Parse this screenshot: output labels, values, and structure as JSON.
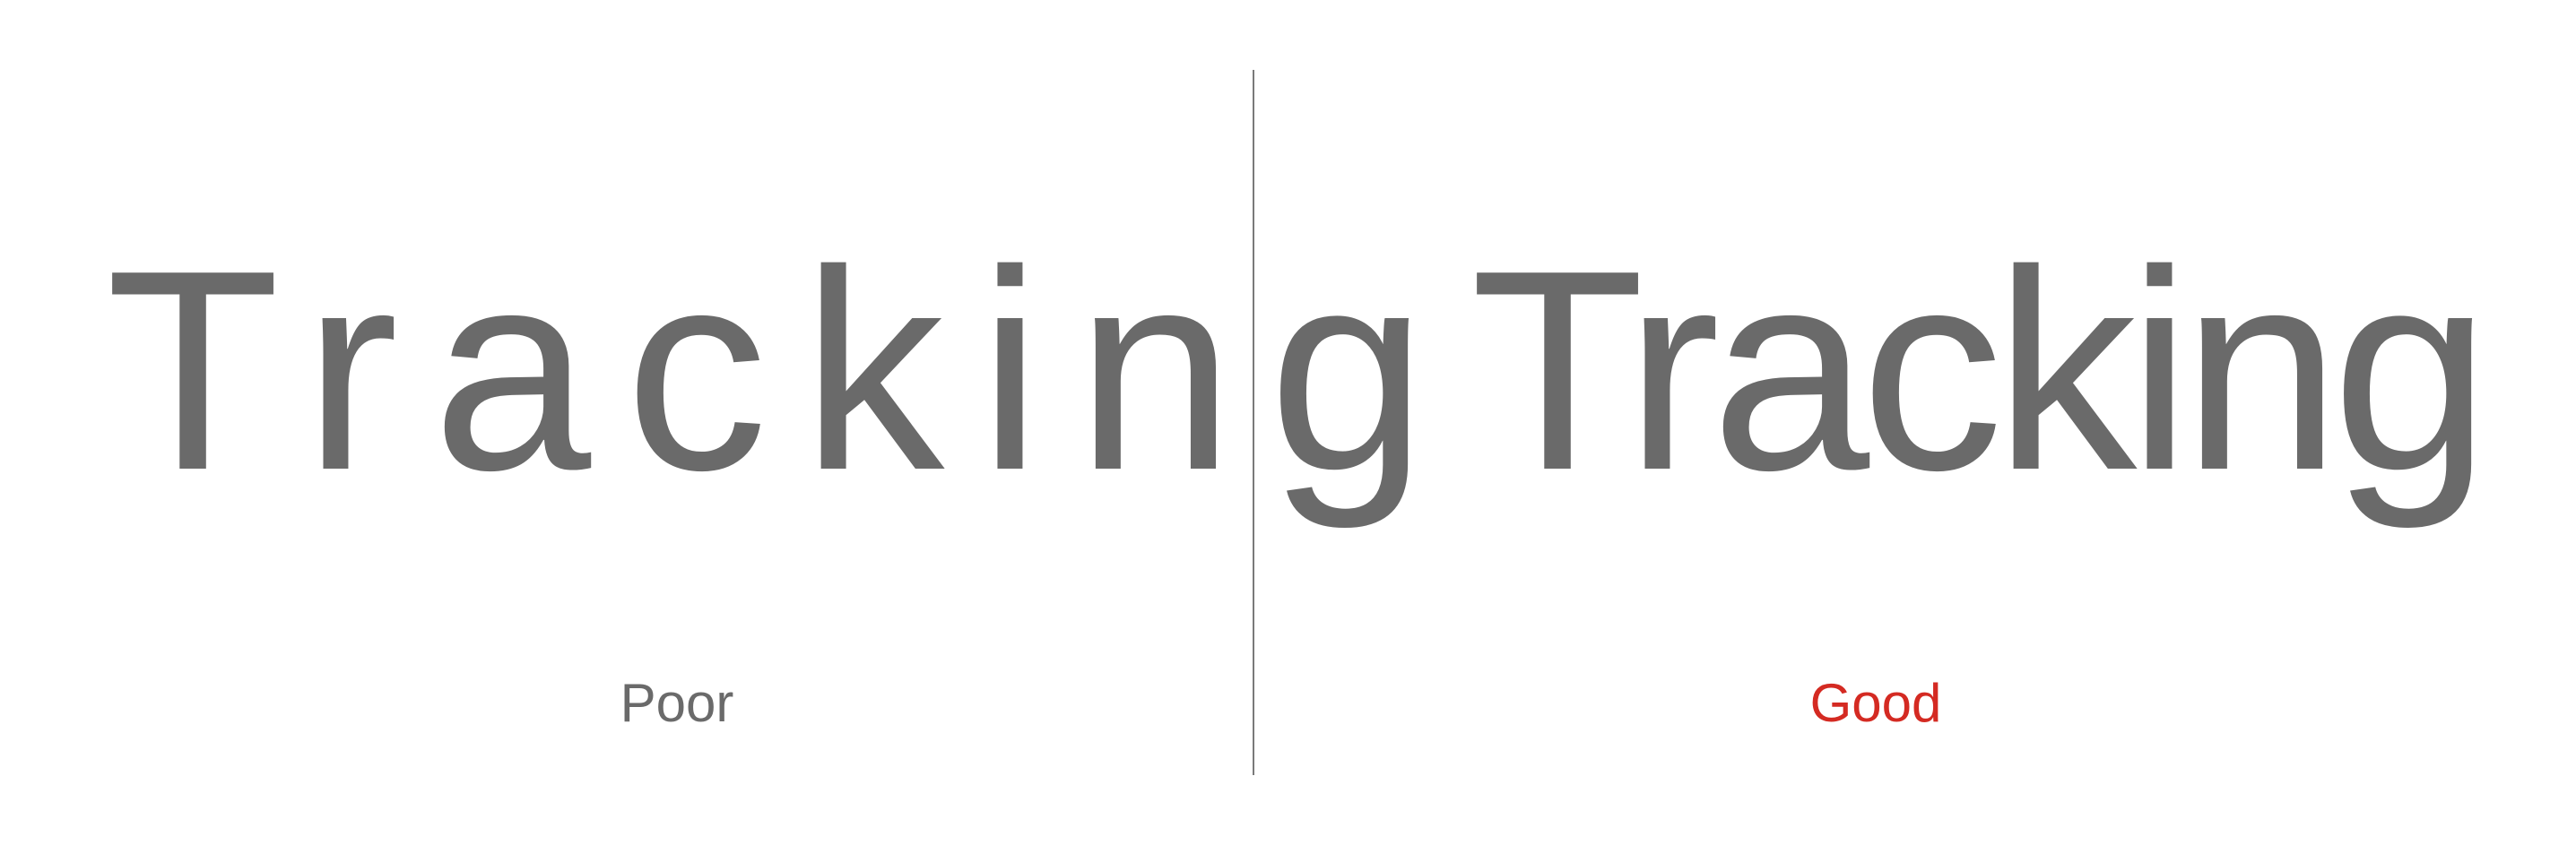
{
  "comparison": {
    "poor": {
      "sample_text": "Tracking",
      "label": "Poor",
      "label_color": "#6a6a6a"
    },
    "good": {
      "sample_text": "Tracking",
      "label": "Good",
      "label_color": "#d42a22"
    }
  },
  "colors": {
    "sample_text": "#6a6a6a",
    "divider": "#7a7a7a",
    "background": "#ffffff"
  }
}
